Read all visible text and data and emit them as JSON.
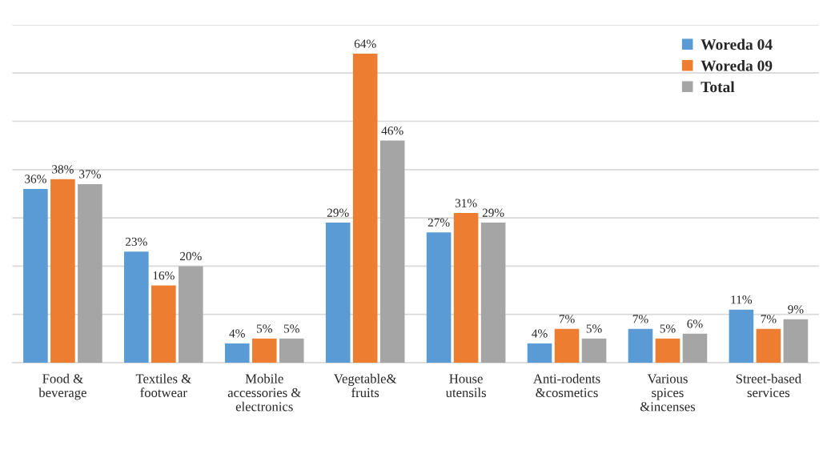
{
  "chart_data": {
    "type": "bar",
    "categories": [
      "Food &\nbeverage",
      "Textiles &\nfootwear",
      "Mobile\naccessories &\nelectronics",
      "Vegetable&\nfruits",
      "House\nutensils",
      "Anti-rodents\n&cosmetics",
      "Various\nspices\n&incenses",
      "Street-based\nservices"
    ],
    "series": [
      {
        "name": "Woreda 04",
        "color": "#5b9bd5",
        "values": [
          36,
          23,
          4,
          29,
          27,
          4,
          7,
          11
        ],
        "value_labels": [
          "36%",
          "23%",
          "4%",
          "29%",
          "27%",
          "4%",
          "7%",
          "11%"
        ]
      },
      {
        "name": "Woreda 09",
        "color": "#ed7d31",
        "values": [
          38,
          16,
          5,
          64,
          31,
          7,
          5,
          7
        ],
        "value_labels": [
          "38%",
          "16%",
          "5%",
          "64%",
          "31%",
          "7%",
          "5%",
          "7%"
        ]
      },
      {
        "name": "Total",
        "color": "#a5a5a5",
        "values": [
          37,
          20,
          5,
          46,
          29,
          5,
          6,
          9
        ],
        "value_labels": [
          "37%",
          "20%",
          "5%",
          "46%",
          "29%",
          "5%",
          "6%",
          "9%"
        ]
      }
    ],
    "ylim": [
      0,
      70
    ],
    "yticks": [
      {
        "value": 0,
        "label": null
      },
      {
        "value": 10,
        "label": null
      },
      {
        "value": 20,
        "label": null
      },
      {
        "value": 30,
        "label": null
      },
      {
        "value": 40,
        "label": null
      },
      {
        "value": 50,
        "label": null
      },
      {
        "value": 60,
        "label": null
      },
      {
        "value": 70,
        "label": null
      }
    ],
    "grid": "y",
    "legend": "top right",
    "tick_labels": "x"
  }
}
